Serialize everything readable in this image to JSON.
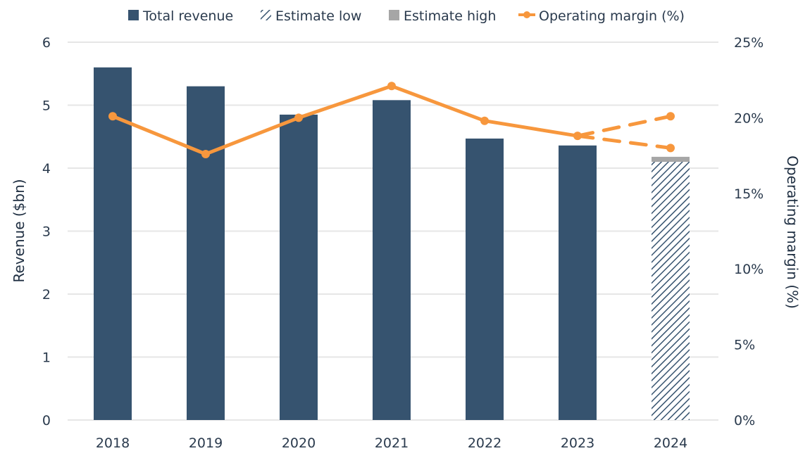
{
  "chart_data": {
    "type": "bar",
    "title": "",
    "categories": [
      "2018",
      "2019",
      "2020",
      "2021",
      "2022",
      "2023",
      "2024"
    ],
    "series": [
      {
        "name": "Total revenue",
        "kind": "bar",
        "axis": "left",
        "color": "#36536f",
        "values": [
          5.6,
          5.3,
          4.85,
          5.08,
          4.47,
          4.36,
          null
        ]
      },
      {
        "name": "Estimate low",
        "kind": "bar-hatched",
        "axis": "left",
        "color": "#36536f",
        "values": [
          null,
          null,
          null,
          null,
          null,
          null,
          4.1
        ]
      },
      {
        "name": "Estimate high",
        "kind": "bar-stacked",
        "axis": "left",
        "color": "#a6a6a6",
        "values": [
          null,
          null,
          null,
          null,
          null,
          null,
          4.18
        ]
      },
      {
        "name": "Operating margin (%)",
        "kind": "line",
        "axis": "right",
        "color": "#f7973d",
        "values": [
          20.1,
          17.6,
          20.0,
          22.1,
          19.8,
          18.8,
          null
        ],
        "forecast": {
          "from": "2023",
          "to": "2024",
          "high": 20.1,
          "low": 18.0,
          "style": "dashed"
        }
      }
    ],
    "xlabel": "",
    "ylabel": "Revenue ($bn)",
    "ylim": [
      0,
      6
    ],
    "yticks": [
      "0",
      "1",
      "2",
      "3",
      "4",
      "5",
      "6"
    ],
    "y2label": "Operating margin (%)",
    "y2lim": [
      0,
      25
    ],
    "y2ticks": [
      "0%",
      "5%",
      "10%",
      "15%",
      "20%",
      "25%"
    ],
    "grid": true,
    "legend": {
      "placement": "top-center",
      "entries": [
        "Total revenue",
        "Estimate low",
        "Estimate high",
        "Operating margin (%)"
      ]
    }
  }
}
